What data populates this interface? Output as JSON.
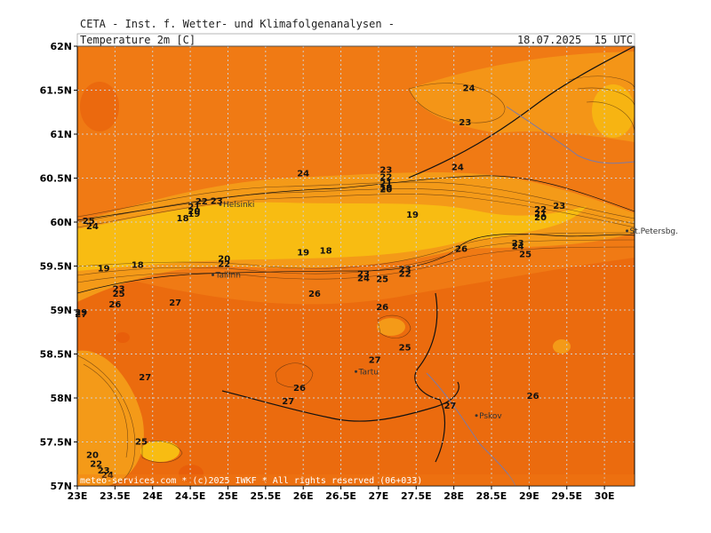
{
  "header": {
    "source": "CETA - Inst. f. Wetter- und Klimafolgenanalysen -",
    "field": "Temperature_2m_[C]",
    "valid_time": "18.07.2025  15 UTC"
  },
  "footer": "meteo-services.com * (c)2025 IWKF * All rights reserved (06+033)",
  "axes": {
    "lat_labels": [
      "57N",
      "57.5N",
      "58N",
      "58.5N",
      "59N",
      "59.5N",
      "60N",
      "60.5N",
      "61N",
      "61.5N",
      "62N"
    ],
    "lon_labels": [
      "23E",
      "23.5E",
      "24E",
      "24.5E",
      "25E",
      "25.5E",
      "26E",
      "26.5E",
      "27E",
      "27.5E",
      "28E",
      "28.5E",
      "29E",
      "29.5E",
      "30E"
    ]
  },
  "cities": [
    {
      "name": "Helsinki",
      "lon": 24.9,
      "lat": 60.2
    },
    {
      "name": "Tallinn",
      "lon": 24.8,
      "lat": 59.4
    },
    {
      "name": "Tartu",
      "lon": 26.7,
      "lat": 58.3
    },
    {
      "name": "Pskov",
      "lon": 28.3,
      "lat": 57.8
    },
    {
      "name": "St.Petersbg.",
      "lon": 30.3,
      "lat": 59.9
    }
  ],
  "contour_labels": [
    {
      "t": "24",
      "lon": 28.2,
      "lat": 61.53
    },
    {
      "t": "23",
      "lon": 28.15,
      "lat": 61.14
    },
    {
      "t": "24",
      "lon": 26.0,
      "lat": 60.56
    },
    {
      "t": "23",
      "lon": 27.1,
      "lat": 60.6
    },
    {
      "t": "22",
      "lon": 27.1,
      "lat": 60.52
    },
    {
      "t": "21",
      "lon": 27.1,
      "lat": 60.45
    },
    {
      "t": "20",
      "lon": 27.1,
      "lat": 60.38
    },
    {
      "t": "19",
      "lon": 27.1,
      "lat": 60.4
    },
    {
      "t": "24",
      "lon": 28.05,
      "lat": 60.63
    },
    {
      "t": "19",
      "lon": 27.45,
      "lat": 60.09
    },
    {
      "t": "23",
      "lon": 24.85,
      "lat": 60.25
    },
    {
      "t": "22",
      "lon": 24.65,
      "lat": 60.24
    },
    {
      "t": "21",
      "lon": 24.55,
      "lat": 60.18
    },
    {
      "t": "20",
      "lon": 24.55,
      "lat": 60.13
    },
    {
      "t": "19",
      "lon": 24.55,
      "lat": 60.1
    },
    {
      "t": "18",
      "lon": 24.4,
      "lat": 60.05
    },
    {
      "t": "25",
      "lon": 23.15,
      "lat": 60.02
    },
    {
      "t": "24",
      "lon": 23.2,
      "lat": 59.96
    },
    {
      "t": "22",
      "lon": 29.15,
      "lat": 60.15
    },
    {
      "t": "21",
      "lon": 29.15,
      "lat": 60.1
    },
    {
      "t": "20",
      "lon": 29.15,
      "lat": 60.06
    },
    {
      "t": "23",
      "lon": 29.4,
      "lat": 60.19
    },
    {
      "t": "19",
      "lon": 26.0,
      "lat": 59.66
    },
    {
      "t": "18",
      "lon": 26.3,
      "lat": 59.68
    },
    {
      "t": "19",
      "lon": 23.35,
      "lat": 59.48
    },
    {
      "t": "18",
      "lon": 23.8,
      "lat": 59.52
    },
    {
      "t": "20",
      "lon": 24.95,
      "lat": 59.59
    },
    {
      "t": "22",
      "lon": 24.95,
      "lat": 59.53
    },
    {
      "t": "26",
      "lon": 28.1,
      "lat": 59.7
    },
    {
      "t": "23",
      "lon": 28.85,
      "lat": 59.77
    },
    {
      "t": "24",
      "lon": 28.85,
      "lat": 59.73
    },
    {
      "t": "25",
      "lon": 28.95,
      "lat": 59.64
    },
    {
      "t": "23",
      "lon": 26.8,
      "lat": 59.42
    },
    {
      "t": "24",
      "lon": 26.8,
      "lat": 59.37
    },
    {
      "t": "25",
      "lon": 27.05,
      "lat": 59.36
    },
    {
      "t": "23",
      "lon": 27.35,
      "lat": 59.47
    },
    {
      "t": "22",
      "lon": 27.35,
      "lat": 59.42
    },
    {
      "t": "23",
      "lon": 23.55,
      "lat": 59.25
    },
    {
      "t": "25",
      "lon": 23.55,
      "lat": 59.19
    },
    {
      "t": "26",
      "lon": 23.5,
      "lat": 59.07
    },
    {
      "t": "27",
      "lon": 24.3,
      "lat": 59.09
    },
    {
      "t": "26",
      "lon": 26.15,
      "lat": 59.19
    },
    {
      "t": "26",
      "lon": 27.05,
      "lat": 59.04
    },
    {
      "t": "29",
      "lon": 23.05,
      "lat": 58.98
    },
    {
      "t": "27",
      "lon": 23.05,
      "lat": 58.96
    },
    {
      "t": "25",
      "lon": 27.35,
      "lat": 58.58
    },
    {
      "t": "27",
      "lon": 26.95,
      "lat": 58.44
    },
    {
      "t": "27",
      "lon": 23.9,
      "lat": 58.24
    },
    {
      "t": "26",
      "lon": 25.95,
      "lat": 58.12
    },
    {
      "t": "27",
      "lon": 25.8,
      "lat": 57.97
    },
    {
      "t": "27",
      "lon": 27.95,
      "lat": 57.92
    },
    {
      "t": "26",
      "lon": 29.05,
      "lat": 58.03
    },
    {
      "t": "25",
      "lon": 23.85,
      "lat": 57.51
    },
    {
      "t": "20",
      "lon": 23.2,
      "lat": 57.36
    },
    {
      "t": "22",
      "lon": 23.25,
      "lat": 57.26
    },
    {
      "t": "23",
      "lon": 23.35,
      "lat": 57.18
    },
    {
      "t": "24",
      "lon": 23.4,
      "lat": 57.13
    }
  ],
  "style": {
    "warm": "#f07a14",
    "hot": "#e85e0a",
    "mild": "#f49a18",
    "cool": "#f8bc12",
    "grid": "#cfcfcf",
    "contour": "#4a2a10",
    "border": "#111111",
    "river": "#7a7aa8"
  }
}
